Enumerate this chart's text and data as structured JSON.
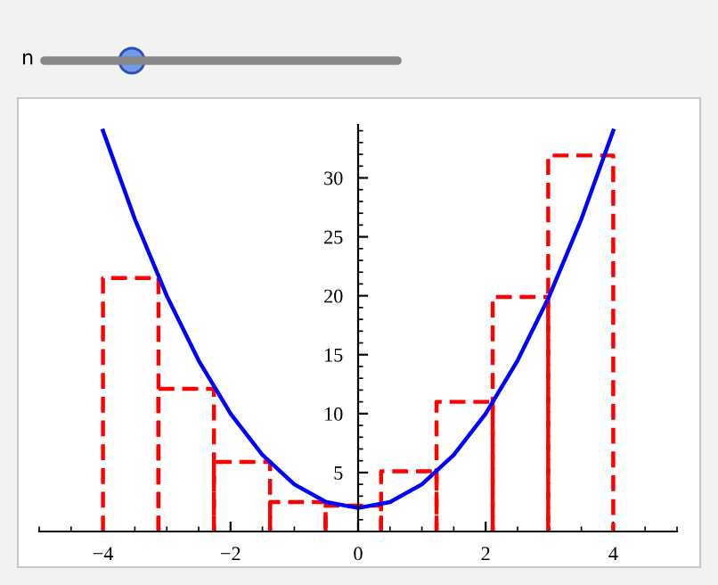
{
  "chart_data": {
    "type": "histogram",
    "series": [
      {
        "type": "histogram",
        "bins": [
          -4,
          -3.13,
          -2.26,
          -1.38,
          -0.51,
          0.36,
          1.23,
          2.11,
          2.98,
          4
        ],
        "values": [
          21.5,
          12.1,
          5.9,
          2.5,
          2.2,
          5.1,
          11.0,
          19.9,
          31.9
        ],
        "color": "#ff0000",
        "line_style": "dashed"
      },
      {
        "type": "line",
        "x": [
          -4,
          -3.5,
          -3,
          -2.5,
          -2,
          -1.5,
          -1,
          -0.5,
          0,
          0.5,
          1,
          1.5,
          2,
          2.5,
          3,
          3.5,
          4
        ],
        "values": [
          34,
          26.5,
          20,
          14.5,
          10,
          6.5,
          4,
          2.5,
          2,
          2.5,
          4,
          6.5,
          10,
          14.5,
          20,
          26.5,
          34
        ],
        "color": "#0000ff"
      }
    ],
    "xlim": [
      -5,
      5
    ],
    "ylim": [
      0,
      34.5
    ],
    "xticks": [
      {
        "value": -4,
        "label": "−4"
      },
      {
        "value": -2,
        "label": "−2"
      },
      0,
      2,
      4
    ],
    "yticks": [
      5,
      10,
      15,
      20,
      25,
      30
    ],
    "annotations": [
      "n"
    ],
    "grid": false,
    "legend": false
  }
}
